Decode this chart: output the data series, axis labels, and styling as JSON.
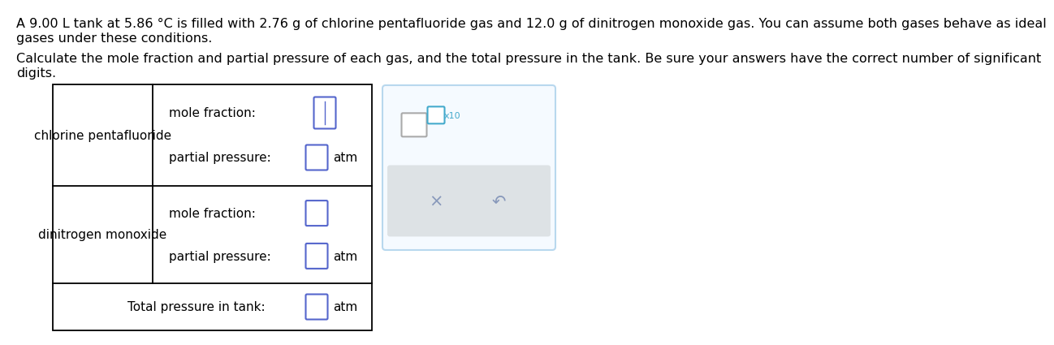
{
  "title_line1": "A 9.00 L tank at 5.86 °C is filled with 2.76 g of chlorine pentafluoride gas and 12.0 g of dinitrogen monoxide gas. You can assume both gases behave as ideal",
  "title_line2": "gases under these conditions.",
  "subtitle_line1": "Calculate the mole fraction and partial pressure of each gas, and the total pressure in the tank. Be sure your answers have the correct number of significant",
  "subtitle_line2": "digits.",
  "gas1_label": "chlorine pentafluoride",
  "gas2_label": "dinitrogen monoxide",
  "mole_fraction_label": "mole fraction:",
  "partial_pressure_label": "partial pressure:",
  "total_pressure_label": "Total pressure in tank:",
  "atm_label": "atm",
  "background_color": "#ffffff",
  "table_border_color": "#000000",
  "input_box_border_blue": "#5566cc",
  "input_box_border_teal": "#44aacc",
  "popup_bg": "#f5faff",
  "popup_border": "#b8d8ee",
  "popup_gray_bg": "#dde2e5",
  "x_color": "#8899bb",
  "redo_color": "#8899bb",
  "x10_label": "x10",
  "text_color": "#000000",
  "font_size_body": 11.5,
  "font_size_table": 11.0
}
